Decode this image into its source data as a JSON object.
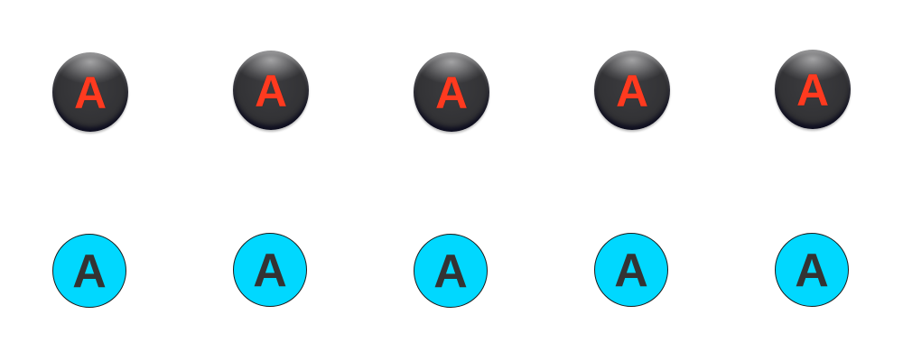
{
  "colors": {
    "background": "#ffffff",
    "dark_button_fill": "#333336",
    "dark_button_label": "#ff3a1f",
    "cyan_button_fill": "#00d8ff",
    "cyan_button_label": "#333333",
    "cyan_button_border": "#1a1a1a"
  },
  "rows": [
    {
      "style": "dark-glossy",
      "buttons": [
        {
          "label": "A"
        },
        {
          "label": "A"
        },
        {
          "label": "A"
        },
        {
          "label": "A"
        },
        {
          "label": "A"
        }
      ]
    },
    {
      "style": "cyan-flat",
      "buttons": [
        {
          "label": "A"
        },
        {
          "label": "A"
        },
        {
          "label": "A"
        },
        {
          "label": "A"
        },
        {
          "label": "A"
        }
      ]
    }
  ]
}
